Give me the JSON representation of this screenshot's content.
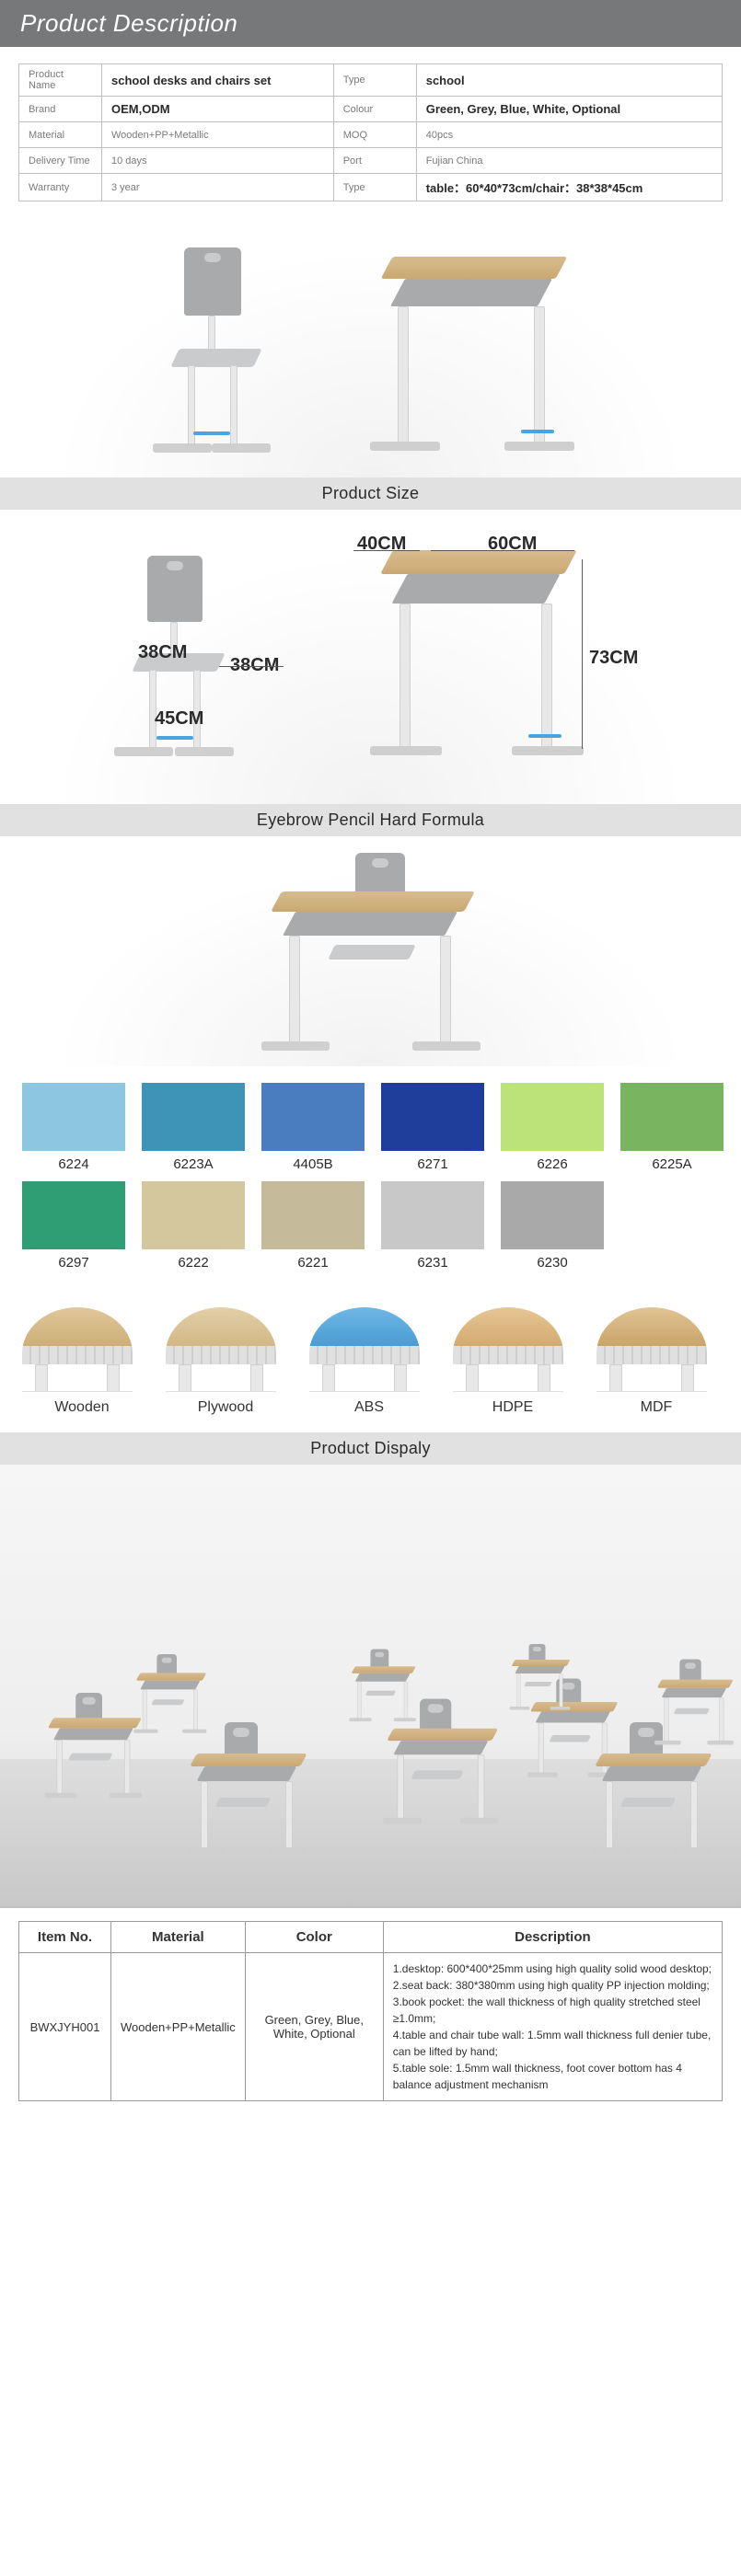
{
  "header": {
    "title": "Product Description"
  },
  "spec_table": {
    "rows": [
      {
        "l1": "Product Name",
        "v1": "school desks and chairs set",
        "l2": "Type",
        "v2": "school"
      },
      {
        "l1": "Brand",
        "v1": "OEM,ODM",
        "l2": "Colour",
        "v2": "Green, Grey, Blue, White, Optional"
      },
      {
        "l1": "Material",
        "v1": "Wooden+PP+Metallic",
        "l2": "MOQ",
        "v2": "40pcs"
      },
      {
        "l1": "Delivery Time",
        "v1": "10 days",
        "l2": "Port",
        "v2": "Fujian China"
      },
      {
        "l1": "Warranty",
        "v1": "3 year",
        "l2": "Type",
        "v2": "table：60*40*73cm/chair：38*38*45cm"
      }
    ],
    "light_value_rows": [
      2,
      3,
      4
    ],
    "bold_v2_rows": [
      0,
      1,
      4
    ]
  },
  "sections": {
    "size": "Product Size",
    "formula": "Eyebrow Pencil Hard Formula",
    "display": "Product Dispaly"
  },
  "dimensions": {
    "desk_w": "60CM",
    "desk_d": "40CM",
    "desk_h": "73CM",
    "chair_w": "38CM",
    "chair_d": "38CM",
    "chair_h": "45CM"
  },
  "swatches": {
    "row1": [
      {
        "code": "6224",
        "hex": "#8dc6e0"
      },
      {
        "code": "6223A",
        "hex": "#3e94b6"
      },
      {
        "code": "4405B",
        "hex": "#4a7cc0"
      },
      {
        "code": "6271",
        "hex": "#1f3d9a"
      },
      {
        "code": "6226",
        "hex": "#bce27a"
      },
      {
        "code": "6225A",
        "hex": "#79b560"
      }
    ],
    "row2": [
      {
        "code": "6297",
        "hex": "#2f9e75"
      },
      {
        "code": "6222",
        "hex": "#d4c79d"
      },
      {
        "code": "6221",
        "hex": "#c5bb9a"
      },
      {
        "code": "6231",
        "hex": "#c8c8c8"
      },
      {
        "code": "6230",
        "hex": "#a9a9a9"
      }
    ]
  },
  "materials": [
    {
      "name": "Wooden",
      "top": "linear-gradient(#e0c79a,#cdae79)"
    },
    {
      "name": "Plywood",
      "top": "linear-gradient(#e3cfa8,#d1b885)"
    },
    {
      "name": "ABS",
      "top": "linear-gradient(#6fb7e4,#4a9cd4)"
    },
    {
      "name": "HDPE",
      "top": "linear-gradient(#e6c695,#d2aa70)"
    },
    {
      "name": "MDF",
      "top": "linear-gradient(#e0c494,#caa46a)"
    }
  ],
  "desc_table": {
    "headers": [
      "Item No.",
      "Material",
      "Color",
      "Description"
    ],
    "item_no": "BWXJYH001",
    "material": "Wooden+PP+Metallic",
    "color": "Green, Grey, Blue, White, Optional",
    "description": "1.desktop: 600*400*25mm using high quality solid wood desktop;\n2.seat back: 380*380mm using high quality PP injection molding;\n3.book pocket: the wall thickness of high quality stretched steel ≥1.0mm;\n4.table and chair tube wall: 1.5mm wall thickness full denier tube, can be lifted by hand;\n5.table sole: 1.5mm wall thickness, foot cover bottom has 4 balance adjustment mechanism"
  }
}
